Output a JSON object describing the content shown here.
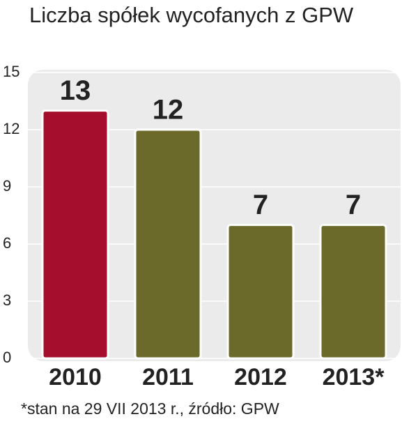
{
  "chart_data": {
    "type": "bar",
    "title": "Liczba spółek wycofanych z GPW",
    "categories": [
      "2010",
      "2011",
      "2012",
      "2013*"
    ],
    "values": [
      13,
      12,
      7,
      7
    ],
    "colors": [
      "#a50e2d",
      "#6b6a2b",
      "#6b6a2b",
      "#6b6a2b"
    ],
    "ylim": [
      0,
      15
    ],
    "yticks": [
      0,
      3,
      6,
      9,
      12,
      15
    ],
    "grid": true,
    "source": "*stan na 29 VII 2013 r., źródło: GPW"
  }
}
